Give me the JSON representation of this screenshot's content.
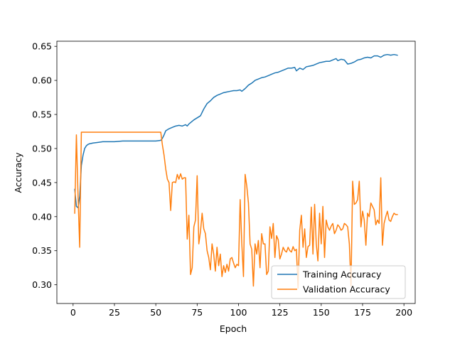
{
  "chart_data": {
    "type": "line",
    "xlabel": "Epoch",
    "ylabel": "Accuracy",
    "xlim": [
      -9.8,
      206.8
    ],
    "ylim": [
      0.2725,
      0.6575
    ],
    "xticks": [
      0,
      25,
      50,
      75,
      100,
      125,
      150,
      175,
      200
    ],
    "yticks": [
      0.3,
      0.35,
      0.4,
      0.45,
      0.5,
      0.55,
      0.6,
      0.65
    ],
    "ytick_labels": [
      "0.30",
      "0.35",
      "0.40",
      "0.45",
      "0.50",
      "0.55",
      "0.60",
      "0.65"
    ],
    "grid": false,
    "legend_position": "lower right",
    "series": [
      {
        "name": "Training Accuracy",
        "color": "#1f77b4",
        "points": [
          [
            1,
            0.44
          ],
          [
            2,
            0.415
          ],
          [
            3,
            0.413
          ],
          [
            4,
            0.43
          ],
          [
            5,
            0.475
          ],
          [
            6,
            0.49
          ],
          [
            7,
            0.5
          ],
          [
            8,
            0.504
          ],
          [
            9,
            0.506
          ],
          [
            10,
            0.507
          ],
          [
            12,
            0.508
          ],
          [
            15,
            0.509
          ],
          [
            18,
            0.51
          ],
          [
            20,
            0.51
          ],
          [
            25,
            0.51
          ],
          [
            30,
            0.511
          ],
          [
            35,
            0.511
          ],
          [
            40,
            0.511
          ],
          [
            45,
            0.511
          ],
          [
            50,
            0.511
          ],
          [
            53,
            0.512
          ],
          [
            54,
            0.515
          ],
          [
            55,
            0.52
          ],
          [
            56,
            0.526
          ],
          [
            58,
            0.529
          ],
          [
            60,
            0.531
          ],
          [
            62,
            0.533
          ],
          [
            64,
            0.534
          ],
          [
            66,
            0.533
          ],
          [
            68,
            0.535
          ],
          [
            69,
            0.533
          ],
          [
            70,
            0.536
          ],
          [
            71,
            0.538
          ],
          [
            73,
            0.542
          ],
          [
            75,
            0.545
          ],
          [
            77,
            0.548
          ],
          [
            79,
            0.558
          ],
          [
            81,
            0.566
          ],
          [
            83,
            0.57
          ],
          [
            85,
            0.575
          ],
          [
            87,
            0.578
          ],
          [
            89,
            0.58
          ],
          [
            91,
            0.582
          ],
          [
            93,
            0.583
          ],
          [
            95,
            0.584
          ],
          [
            97,
            0.585
          ],
          [
            99,
            0.585
          ],
          [
            101,
            0.586
          ],
          [
            102,
            0.584
          ],
          [
            104,
            0.588
          ],
          [
            106,
            0.593
          ],
          [
            108,
            0.596
          ],
          [
            110,
            0.6
          ],
          [
            112,
            0.602
          ],
          [
            114,
            0.604
          ],
          [
            116,
            0.605
          ],
          [
            118,
            0.607
          ],
          [
            120,
            0.609
          ],
          [
            122,
            0.611
          ],
          [
            124,
            0.612
          ],
          [
            126,
            0.614
          ],
          [
            128,
            0.616
          ],
          [
            130,
            0.618
          ],
          [
            132,
            0.618
          ],
          [
            134,
            0.619
          ],
          [
            135,
            0.614
          ],
          [
            137,
            0.618
          ],
          [
            139,
            0.616
          ],
          [
            141,
            0.62
          ],
          [
            143,
            0.621
          ],
          [
            145,
            0.622
          ],
          [
            147,
            0.624
          ],
          [
            149,
            0.626
          ],
          [
            151,
            0.627
          ],
          [
            153,
            0.628
          ],
          [
            155,
            0.628
          ],
          [
            157,
            0.63
          ],
          [
            159,
            0.632
          ],
          [
            160,
            0.629
          ],
          [
            162,
            0.631
          ],
          [
            164,
            0.63
          ],
          [
            166,
            0.624
          ],
          [
            168,
            0.625
          ],
          [
            170,
            0.627
          ],
          [
            172,
            0.63
          ],
          [
            174,
            0.631
          ],
          [
            176,
            0.633
          ],
          [
            178,
            0.634
          ],
          [
            180,
            0.633
          ],
          [
            182,
            0.636
          ],
          [
            184,
            0.636
          ],
          [
            186,
            0.634
          ],
          [
            188,
            0.637
          ],
          [
            190,
            0.638
          ],
          [
            192,
            0.637
          ],
          [
            194,
            0.638
          ],
          [
            196,
            0.637
          ]
        ]
      },
      {
        "name": "Validation Accuracy",
        "color": "#ff7f0e",
        "points": [
          [
            1,
            0.405
          ],
          [
            2,
            0.52
          ],
          [
            3,
            0.43
          ],
          [
            4,
            0.355
          ],
          [
            5,
            0.524
          ],
          [
            10,
            0.524
          ],
          [
            20,
            0.524
          ],
          [
            30,
            0.524
          ],
          [
            40,
            0.524
          ],
          [
            50,
            0.524
          ],
          [
            53,
            0.524
          ],
          [
            54,
            0.505
          ],
          [
            55,
            0.49
          ],
          [
            56,
            0.47
          ],
          [
            57,
            0.455
          ],
          [
            58,
            0.45
          ],
          [
            59,
            0.409
          ],
          [
            60,
            0.45
          ],
          [
            61,
            0.451
          ],
          [
            62,
            0.45
          ],
          [
            63,
            0.462
          ],
          [
            64,
            0.455
          ],
          [
            65,
            0.463
          ],
          [
            66,
            0.455
          ],
          [
            67,
            0.457
          ],
          [
            68,
            0.457
          ],
          [
            69,
            0.367
          ],
          [
            70,
            0.402
          ],
          [
            71,
            0.315
          ],
          [
            72,
            0.325
          ],
          [
            73,
            0.385
          ],
          [
            74,
            0.395
          ],
          [
            75,
            0.46
          ],
          [
            76,
            0.36
          ],
          [
            77,
            0.378
          ],
          [
            78,
            0.405
          ],
          [
            79,
            0.382
          ],
          [
            80,
            0.375
          ],
          [
            81,
            0.35
          ],
          [
            82,
            0.34
          ],
          [
            83,
            0.322
          ],
          [
            84,
            0.36
          ],
          [
            85,
            0.345
          ],
          [
            86,
            0.32
          ],
          [
            87,
            0.355
          ],
          [
            88,
            0.328
          ],
          [
            89,
            0.345
          ],
          [
            90,
            0.312
          ],
          [
            91,
            0.328
          ],
          [
            92,
            0.318
          ],
          [
            93,
            0.33
          ],
          [
            94,
            0.32
          ],
          [
            95,
            0.338
          ],
          [
            96,
            0.34
          ],
          [
            97,
            0.332
          ],
          [
            98,
            0.325
          ],
          [
            99,
            0.33
          ],
          [
            100,
            0.328
          ],
          [
            101,
            0.425
          ],
          [
            102,
            0.36
          ],
          [
            103,
            0.312
          ],
          [
            104,
            0.462
          ],
          [
            105,
            0.445
          ],
          [
            106,
            0.42
          ],
          [
            107,
            0.36
          ],
          [
            108,
            0.352
          ],
          [
            109,
            0.298
          ],
          [
            110,
            0.36
          ],
          [
            111,
            0.345
          ],
          [
            112,
            0.365
          ],
          [
            113,
            0.325
          ],
          [
            114,
            0.375
          ],
          [
            115,
            0.36
          ],
          [
            116,
            0.36
          ],
          [
            117,
            0.315
          ],
          [
            118,
            0.32
          ],
          [
            119,
            0.385
          ],
          [
            120,
            0.368
          ],
          [
            121,
            0.39
          ],
          [
            122,
            0.34
          ],
          [
            123,
            0.372
          ],
          [
            124,
            0.366
          ],
          [
            125,
            0.338
          ],
          [
            126,
            0.345
          ],
          [
            127,
            0.355
          ],
          [
            128,
            0.35
          ],
          [
            129,
            0.348
          ],
          [
            130,
            0.355
          ],
          [
            131,
            0.35
          ],
          [
            132,
            0.348
          ],
          [
            133,
            0.356
          ],
          [
            134,
            0.35
          ],
          [
            135,
            0.352
          ],
          [
            136,
            0.295
          ],
          [
            137,
            0.38
          ],
          [
            138,
            0.402
          ],
          [
            139,
            0.355
          ],
          [
            140,
            0.382
          ],
          [
            141,
            0.34
          ],
          [
            142,
            0.356
          ],
          [
            143,
            0.358
          ],
          [
            144,
            0.414
          ],
          [
            145,
            0.345
          ],
          [
            146,
            0.418
          ],
          [
            147,
            0.36
          ],
          [
            148,
            0.335
          ],
          [
            149,
            0.405
          ],
          [
            150,
            0.36
          ],
          [
            151,
            0.415
          ],
          [
            152,
            0.34
          ],
          [
            153,
            0.395
          ],
          [
            154,
            0.385
          ],
          [
            155,
            0.38
          ],
          [
            156,
            0.386
          ],
          [
            157,
            0.39
          ],
          [
            158,
            0.375
          ],
          [
            159,
            0.38
          ],
          [
            160,
            0.388
          ],
          [
            161,
            0.385
          ],
          [
            162,
            0.38
          ],
          [
            163,
            0.382
          ],
          [
            164,
            0.39
          ],
          [
            165,
            0.388
          ],
          [
            166,
            0.385
          ],
          [
            167,
            0.36
          ],
          [
            168,
            0.298
          ],
          [
            169,
            0.452
          ],
          [
            170,
            0.418
          ],
          [
            171,
            0.42
          ],
          [
            172,
            0.425
          ],
          [
            173,
            0.452
          ],
          [
            174,
            0.385
          ],
          [
            175,
            0.408
          ],
          [
            176,
            0.395
          ],
          [
            177,
            0.358
          ],
          [
            178,
            0.405
          ],
          [
            179,
            0.4
          ],
          [
            180,
            0.42
          ],
          [
            181,
            0.415
          ],
          [
            182,
            0.41
          ],
          [
            183,
            0.388
          ],
          [
            184,
            0.395
          ],
          [
            185,
            0.39
          ],
          [
            186,
            0.457
          ],
          [
            187,
            0.358
          ],
          [
            188,
            0.39
          ],
          [
            189,
            0.4
          ],
          [
            190,
            0.408
          ],
          [
            191,
            0.395
          ],
          [
            192,
            0.393
          ],
          [
            193,
            0.4
          ],
          [
            194,
            0.405
          ],
          [
            195,
            0.403
          ],
          [
            196,
            0.403
          ]
        ]
      }
    ]
  }
}
